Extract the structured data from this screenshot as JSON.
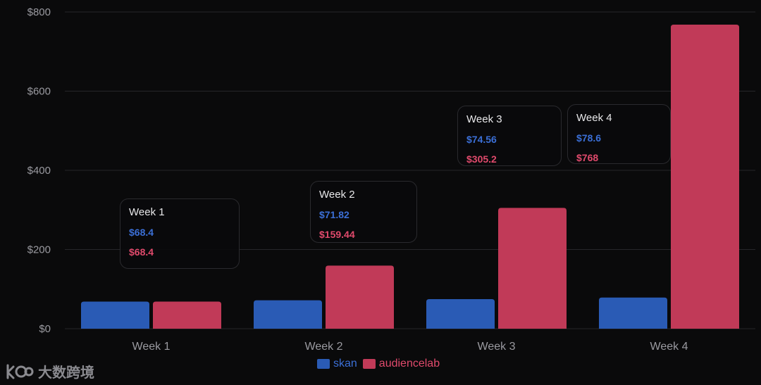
{
  "chart_data": {
    "type": "bar",
    "categories": [
      "Week 1",
      "Week 2",
      "Week 3",
      "Week 4"
    ],
    "series": [
      {
        "name": "skan",
        "values": [
          68.4,
          71.82,
          74.56,
          78.6
        ],
        "color": "#2a5bb5"
      },
      {
        "name": "audiencelab",
        "values": [
          68.4,
          159.44,
          305.2,
          768
        ],
        "color": "#c13a58"
      }
    ],
    "ylim": [
      0,
      800
    ],
    "yticks": [
      0,
      200,
      400,
      600,
      800
    ],
    "ytick_labels": [
      "$0",
      "$200",
      "$400",
      "$600",
      "$800"
    ],
    "grid": true,
    "legend": "bottom-center",
    "title": "",
    "xlabel": "",
    "ylabel": "",
    "tooltips": [
      {
        "title": "Week 1",
        "skan": "$68.4",
        "audiencelab": "$68.4"
      },
      {
        "title": "Week 2",
        "skan": "$71.82",
        "audiencelab": "$159.44"
      },
      {
        "title": "Week 3",
        "skan": "$74.56",
        "audiencelab": "$305.2"
      },
      {
        "title": "Week 4",
        "skan": "$78.6",
        "audiencelab": "$768"
      }
    ],
    "colors": {
      "skan_text": "#3b6fd6",
      "audiencelab_text": "#e04a6c"
    }
  },
  "watermark": {
    "text": "大数跨境",
    "icon": "kbd-logo-icon"
  }
}
